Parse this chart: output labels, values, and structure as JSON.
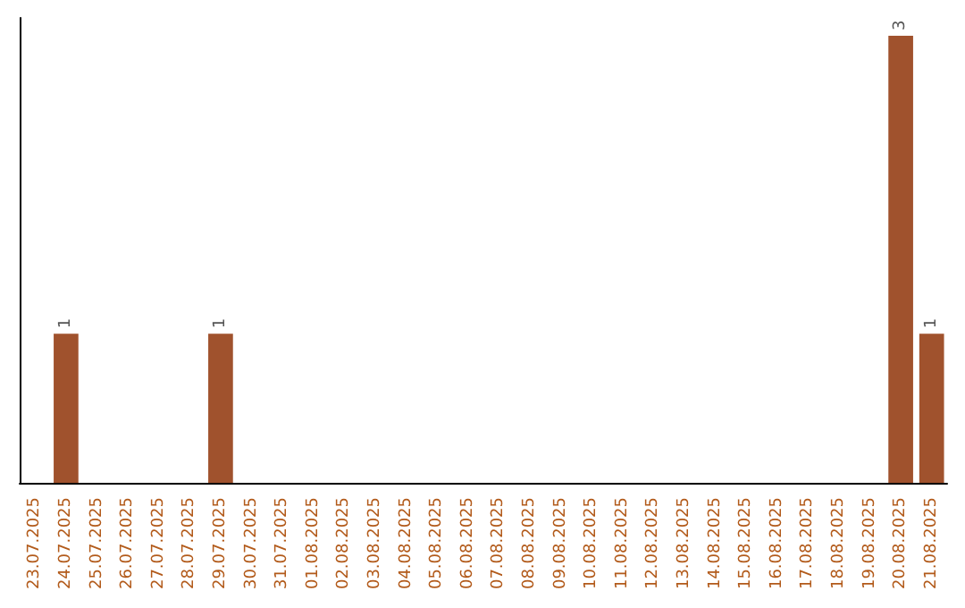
{
  "chart_data": {
    "type": "bar",
    "categories": [
      "23.07.2025",
      "24.07.2025",
      "25.07.2025",
      "26.07.2025",
      "27.07.2025",
      "28.07.2025",
      "29.07.2025",
      "30.07.2025",
      "31.07.2025",
      "01.08.2025",
      "02.08.2025",
      "03.08.2025",
      "04.08.2025",
      "05.08.2025",
      "06.08.2025",
      "07.08.2025",
      "08.08.2025",
      "09.08.2025",
      "10.08.2025",
      "11.08.2025",
      "12.08.2025",
      "13.08.2025",
      "14.08.2025",
      "15.08.2025",
      "16.08.2025",
      "17.08.2025",
      "18.08.2025",
      "19.08.2025",
      "20.08.2025",
      "21.08.2025"
    ],
    "values": [
      0,
      1,
      0,
      0,
      0,
      0,
      1,
      0,
      0,
      0,
      0,
      0,
      0,
      0,
      0,
      0,
      0,
      0,
      0,
      0,
      0,
      0,
      0,
      0,
      0,
      0,
      0,
      0,
      3,
      1
    ],
    "value_labels": [
      null,
      "1",
      null,
      null,
      null,
      null,
      "1",
      null,
      null,
      null,
      null,
      null,
      null,
      null,
      null,
      null,
      null,
      null,
      null,
      null,
      null,
      null,
      null,
      null,
      null,
      null,
      null,
      null,
      "3",
      "1"
    ],
    "color": "#a0522d"
  }
}
